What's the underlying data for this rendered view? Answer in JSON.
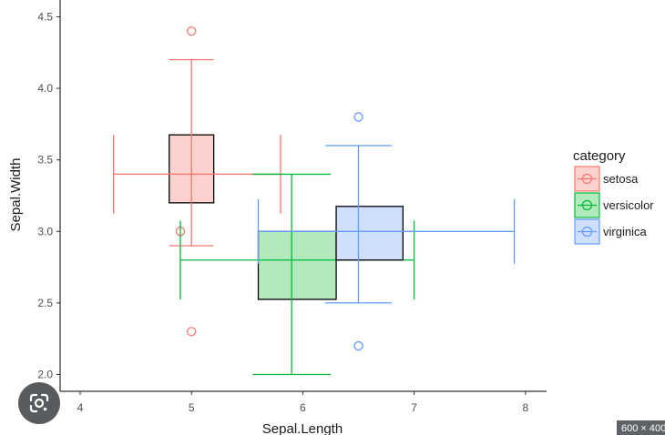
{
  "chart_data": {
    "type": "crossbar-errorbar",
    "xlabel": "Sepal.Length",
    "ylabel": "Sepal.Width",
    "xlim": [
      3.8,
      8.2
    ],
    "ylim": [
      1.95,
      4.62
    ],
    "x_ticks": [
      "4",
      "5",
      "6",
      "7",
      "8"
    ],
    "y_ticks": [
      "2.0",
      "2.5",
      "3.0",
      "3.5",
      "4.0",
      "4.5"
    ],
    "grid": false,
    "legend": {
      "title": "category",
      "position": "right",
      "items": [
        "setosa",
        "versicolor",
        "virginica"
      ]
    },
    "series": [
      {
        "name": "setosa",
        "color": "#F8766D",
        "fill": "#FCD2CF",
        "box": {
          "x": [
            4.8,
            5.2
          ],
          "y": [
            3.2,
            3.675
          ]
        },
        "median": {
          "x": 5.0,
          "y": 3.4
        },
        "whisker_x": [
          4.3,
          5.8
        ],
        "whisker_y": [
          2.9,
          4.2
        ],
        "outliers": [
          {
            "x": 5.0,
            "y": 4.4
          },
          {
            "x": 5.0,
            "y": 2.3
          },
          {
            "x": 4.9,
            "y": 3.0
          }
        ]
      },
      {
        "name": "versicolor",
        "color": "#00BA38",
        "fill": "#B3EABD",
        "box": {
          "x": [
            5.6,
            6.3
          ],
          "y": [
            2.525,
            3.0
          ]
        },
        "median": {
          "x": 5.9,
          "y": 2.8
        },
        "whisker_x": [
          4.9,
          7.0
        ],
        "whisker_y": [
          2.0,
          3.4
        ],
        "outliers": []
      },
      {
        "name": "virginica",
        "color": "#619CFF",
        "fill": "#CFDFFD",
        "box": {
          "x": [
            6.3,
            6.9
          ],
          "y": [
            2.8,
            3.175
          ]
        },
        "median": {
          "x": 6.5,
          "y": 3.0
        },
        "whisker_x": [
          5.6,
          7.9
        ],
        "whisker_y": [
          2.5,
          3.6
        ],
        "outliers": [
          {
            "x": 6.5,
            "y": 3.8
          },
          {
            "x": 6.5,
            "y": 2.2
          }
        ]
      }
    ]
  },
  "overlay": {
    "lens_icon": "google-lens-icon",
    "size_badge": "600 × 400"
  }
}
